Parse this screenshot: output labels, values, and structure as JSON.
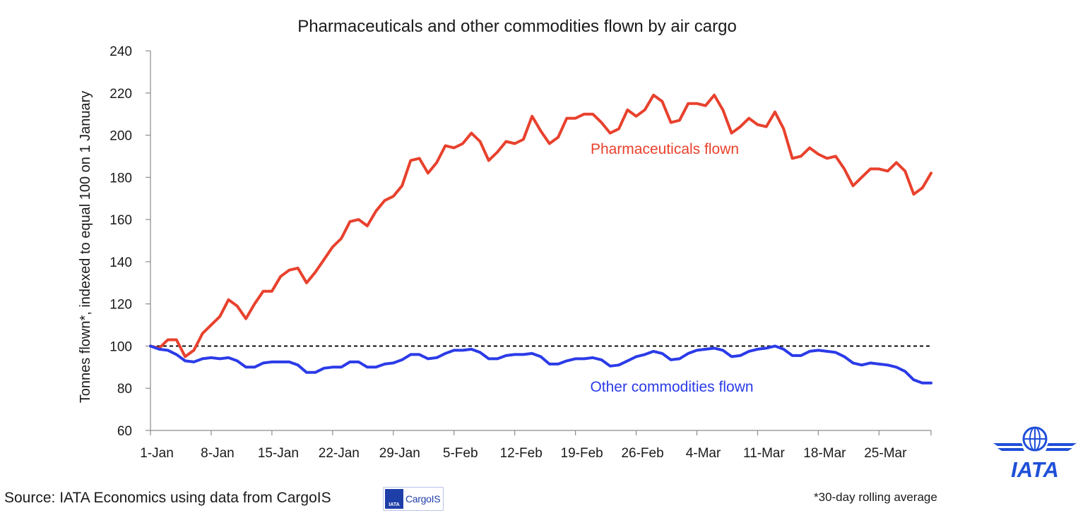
{
  "chart_data": {
    "type": "line",
    "title": "Pharmaceuticals and other commodities flown by air cargo",
    "ylabel": "Tonnes flown*, indexed to equal 100 on 1 January",
    "xlabel": "",
    "ylim": [
      60,
      240
    ],
    "yticks": [
      60,
      80,
      100,
      120,
      140,
      160,
      180,
      200,
      220,
      240
    ],
    "x_tick_labels": [
      "1-Jan",
      "8-Jan",
      "15-Jan",
      "22-Jan",
      "29-Jan",
      "5-Feb",
      "12-Feb",
      "19-Feb",
      "26-Feb",
      "4-Mar",
      "11-Mar",
      "18-Mar",
      "25-Mar"
    ],
    "x_start": "1-Jan",
    "x_end": "31-Mar",
    "reference_line": {
      "y": 100,
      "style": "dashed",
      "color": "#000000"
    },
    "series": [
      {
        "name": "Pharmaceuticals flown",
        "color": "#e8412d",
        "values": [
          100,
          99,
          103,
          103,
          95,
          98,
          106,
          110,
          114,
          122,
          119,
          113,
          120,
          126,
          126,
          133,
          136,
          137,
          130,
          135,
          141,
          147,
          151,
          159,
          160,
          157,
          164,
          169,
          171,
          176,
          188,
          189,
          182,
          187,
          195,
          194,
          196,
          201,
          197,
          188,
          192,
          197,
          196,
          198,
          209,
          202,
          196,
          199,
          208,
          208,
          210,
          210,
          206,
          201,
          203,
          212,
          209,
          212,
          219,
          216,
          206,
          207,
          215,
          215,
          214,
          219,
          212,
          201,
          204,
          208,
          205,
          204,
          211,
          203,
          189,
          190,
          194,
          191,
          189,
          190,
          184,
          176,
          180,
          184,
          184,
          183,
          187,
          183,
          172,
          175,
          182
        ]
      },
      {
        "name": "Other commodities flown",
        "color": "#2b3be8",
        "values": [
          100,
          98.5,
          98,
          96,
          93,
          92.5,
          94,
          94.5,
          94,
          94.5,
          93,
          90,
          90,
          92,
          92.5,
          92.5,
          92.5,
          91,
          87.5,
          87.5,
          89.5,
          90,
          90,
          92.5,
          92.5,
          90,
          90,
          91.5,
          92,
          93.5,
          96,
          96,
          94,
          94.5,
          96.5,
          98,
          98,
          98.5,
          97,
          94,
          94,
          95.5,
          96,
          96,
          96.5,
          95,
          91.5,
          91.5,
          93,
          94,
          94,
          94.5,
          93.5,
          90.5,
          91,
          93,
          95,
          96,
          97.5,
          96.5,
          93.5,
          94,
          96.5,
          98,
          98.5,
          99,
          98,
          95,
          95.5,
          97.5,
          98.5,
          99,
          100,
          98.5,
          95.5,
          95.5,
          97.5,
          98,
          97.5,
          97,
          95,
          92,
          91,
          92,
          91.5,
          91,
          90,
          88,
          84,
          82.5,
          82.5
        ]
      }
    ],
    "source": "Source: IATA Economics using data from CargoIS",
    "footnote": "*30-day rolling average"
  },
  "logos": {
    "cargois_mark": "IATA",
    "cargois_word": "CargoIS",
    "iata_word": "IATA"
  }
}
